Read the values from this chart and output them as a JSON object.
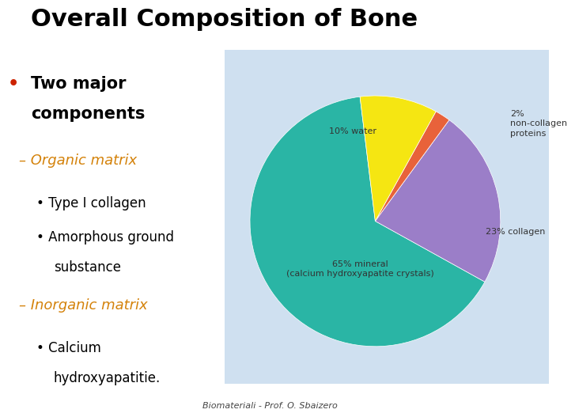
{
  "title": "Overall Composition of Bone",
  "background_color": "#ffffff",
  "pie_bg_color": "#cfe0f0",
  "slices": [
    65,
    23,
    2,
    10
  ],
  "label_texts": [
    "65% mineral\n(calcium hydroxyapatite crystals)",
    "23% collagen",
    "2%\nnon-collagen\nproteins",
    "10% water"
  ],
  "colors": [
    "#2ab5a5",
    "#9b7ec8",
    "#e8623a",
    "#f5e612"
  ],
  "startangle": 97,
  "bullet_main_line1": "Two major",
  "bullet_main_line2": "components",
  "sub1_label": "Organic matrix",
  "sub1_item1": "Type I collagen",
  "sub1_item2": "Amorphous ground",
  "sub1_item2b": "substance",
  "sub2_label": "Inorganic matrix",
  "sub2_item1": "Calcium",
  "sub2_item1b": "hydroxyapatitie.",
  "footer": "Biomateriali - Prof. O. Sbaizero",
  "title_fontsize": 22,
  "bullet_fontsize": 15,
  "sub_fontsize": 13,
  "item_fontsize": 12,
  "pie_label_fontsize": 8,
  "orange_color": "#d4820a",
  "black_color": "#000000",
  "red_color": "#cc2200",
  "label_color": "#333333"
}
